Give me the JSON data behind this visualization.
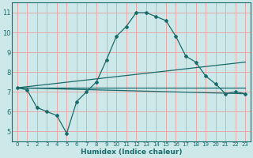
{
  "xlabel": "Humidex (Indice chaleur)",
  "ylabel": "",
  "background_color": "#cce8e8",
  "grid_color": "#e8a8a8",
  "line_color": "#1a6b6b",
  "xlim": [
    -0.5,
    23.5
  ],
  "ylim": [
    4.5,
    11.5
  ],
  "xticks": [
    0,
    1,
    2,
    3,
    4,
    5,
    6,
    7,
    8,
    9,
    10,
    11,
    12,
    13,
    14,
    15,
    16,
    17,
    18,
    19,
    20,
    21,
    22,
    23
  ],
  "yticks": [
    5,
    6,
    7,
    8,
    9,
    10,
    11
  ],
  "series": [
    {
      "x": [
        0,
        1,
        2,
        3,
        4,
        5,
        6,
        7,
        8,
        9,
        10,
        11,
        12,
        13,
        14,
        15,
        16,
        17,
        18,
        19,
        20,
        21,
        22,
        23
      ],
      "y": [
        7.2,
        7.1,
        6.2,
        6.0,
        5.8,
        4.9,
        6.5,
        7.0,
        7.5,
        8.6,
        9.8,
        10.3,
        11.0,
        11.0,
        10.8,
        10.6,
        9.8,
        8.8,
        8.5,
        7.8,
        7.4,
        6.9,
        7.0,
        6.9
      ]
    },
    {
      "x": [
        0,
        23
      ],
      "y": [
        7.2,
        7.2
      ]
    },
    {
      "x": [
        0,
        23
      ],
      "y": [
        7.2,
        8.5
      ]
    },
    {
      "x": [
        0,
        23
      ],
      "y": [
        7.2,
        6.9
      ]
    }
  ]
}
